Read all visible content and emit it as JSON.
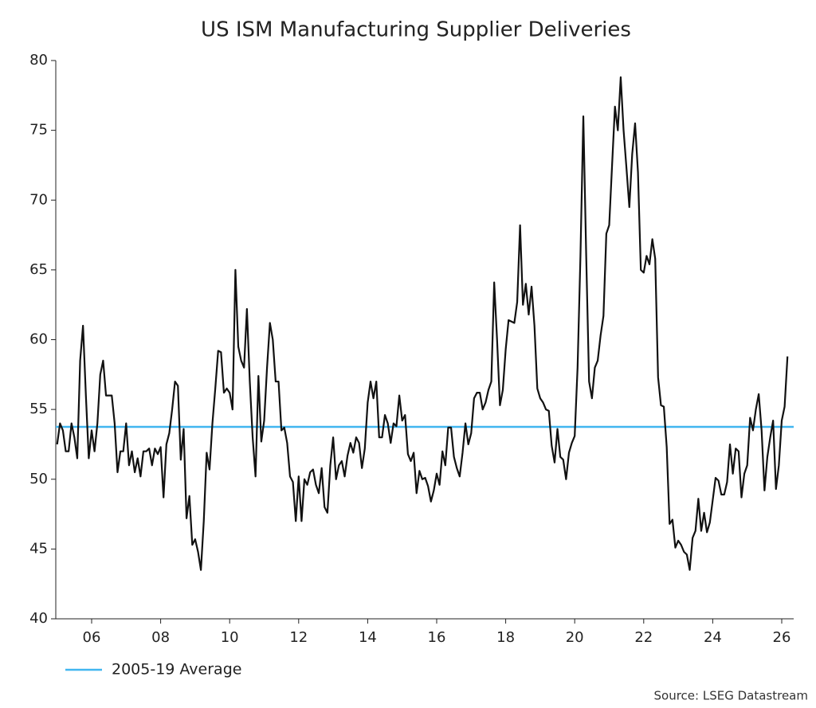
{
  "chart_data": {
    "type": "line",
    "title": "US ISM Manufacturing Supplier Deliveries",
    "source": "Source: LSEG Datastream",
    "color": "#111111",
    "categories": [
      null,
      null,
      null,
      null,
      null,
      null,
      null,
      null,
      null,
      null,
      null,
      null,
      "06",
      null,
      null,
      null,
      null,
      null,
      null,
      null,
      null,
      null,
      null,
      null,
      null,
      null,
      null,
      null,
      null,
      null,
      null,
      null,
      null,
      null,
      null,
      null,
      "08",
      null,
      null,
      null,
      null,
      null,
      null,
      null,
      null,
      null,
      null,
      null,
      null,
      null,
      null,
      null,
      null,
      null,
      null,
      null,
      null,
      null,
      null,
      null,
      "10",
      null,
      null,
      null,
      null,
      null,
      null,
      null,
      null,
      null,
      null,
      null,
      null,
      null,
      null,
      null,
      null,
      null,
      null,
      null,
      null,
      null,
      null,
      null,
      "12",
      null,
      null,
      null,
      null,
      null,
      null,
      null,
      null,
      null,
      null,
      null,
      null,
      null,
      null,
      null,
      null,
      null,
      null,
      null,
      null,
      null,
      null,
      null,
      "14",
      null,
      null,
      null,
      null,
      null,
      null,
      null,
      null,
      null,
      null,
      null,
      null,
      null,
      null,
      null,
      null,
      null,
      null,
      null,
      null,
      null,
      null,
      null,
      "16",
      null,
      null,
      null,
      null,
      null,
      null,
      null,
      null,
      null,
      null,
      null,
      null,
      null,
      null,
      null,
      null,
      null,
      null,
      null,
      null,
      null,
      null,
      null,
      "18",
      null,
      null,
      null,
      null,
      null,
      null,
      null,
      null,
      null,
      null,
      null,
      null,
      null,
      null,
      null,
      null,
      null,
      null,
      null,
      null,
      null,
      null,
      null,
      "20",
      null,
      null,
      null,
      null,
      null,
      null,
      null,
      null,
      null,
      null,
      null,
      null,
      null,
      null,
      null,
      null,
      null,
      null,
      null,
      null,
      null,
      null,
      null,
      "22",
      null,
      null,
      null,
      null,
      null,
      null,
      null,
      null,
      null,
      null,
      null,
      null,
      null,
      null,
      null,
      null,
      null,
      null,
      null,
      null,
      null,
      null,
      null,
      "24",
      null,
      null,
      null,
      null,
      null,
      null,
      null,
      null,
      null,
      null,
      null,
      null,
      null,
      null,
      null,
      null,
      null,
      null,
      null,
      null,
      null,
      null,
      null,
      "26",
      null,
      null
    ],
    "values": [
      52.5,
      54,
      53.5,
      52,
      52,
      54,
      53,
      51.5,
      58.5,
      61,
      56,
      51.5,
      53.5,
      52,
      54,
      57.5,
      58.5,
      56,
      56,
      56,
      54,
      50.5,
      52,
      52,
      54,
      51,
      52,
      50.5,
      51.5,
      50.2,
      52,
      52,
      52.2,
      51,
      52.2,
      51.8,
      52.3,
      48.7,
      52.5,
      53.3,
      55,
      57,
      56.7,
      51.4,
      53.6,
      47.2,
      48.8,
      45.3,
      45.7,
      44.8,
      43.5,
      47,
      51.9,
      50.7,
      54,
      56.5,
      59.2,
      59.1,
      56.2,
      56.5,
      56.2,
      55,
      65,
      59.5,
      58.5,
      58,
      62.2,
      57,
      53,
      50.2,
      57.4,
      52.7,
      54.2,
      58,
      61.2,
      60,
      57,
      57,
      53.5,
      53.7,
      52.6,
      50.2,
      49.8,
      47,
      50.2,
      47,
      50,
      49.6,
      50.5,
      50.7,
      49.6,
      49,
      50.8,
      48,
      47.6,
      51,
      53,
      50,
      51,
      51.3,
      50.2,
      51.7,
      52.6,
      51.9,
      53,
      52.6,
      50.8,
      52.2,
      55.5,
      57,
      55.8,
      57,
      53,
      53,
      54.6,
      54,
      52.6,
      54,
      53.8,
      56,
      54.2,
      54.6,
      51.8,
      51.3,
      51.9,
      49,
      50.6,
      50,
      50.1,
      49.5,
      48.4,
      49.2,
      50.4,
      49.6,
      52,
      51,
      53.7,
      53.7,
      51.6,
      50.8,
      50.2,
      51.9,
      54,
      52.5,
      53.3,
      55.8,
      56.2,
      56.2,
      55,
      55.5,
      56.4,
      57,
      64.1,
      60,
      55.3,
      56.4,
      59.3,
      61.4,
      61.3,
      61.2,
      62.7,
      68.2,
      62.5,
      64,
      61.8,
      63.8,
      61,
      56.5,
      55.8,
      55.5,
      55,
      54.9,
      52.4,
      51.2,
      53.6,
      51.6,
      51.4,
      50,
      51.9,
      52.6,
      53.1,
      58,
      66,
      76,
      66,
      57,
      55.8,
      58,
      58.5,
      60.3,
      61.7,
      67.6,
      68.2,
      72.5,
      76.7,
      75,
      78.8,
      75,
      72.3,
      69.5,
      73.3,
      75.5,
      72,
      65,
      64.8,
      66,
      65.4,
      67.2,
      65.8,
      57.3,
      55.3,
      55.2,
      52.3,
      46.8,
      47.1,
      45.1,
      45.6,
      45.3,
      44.8,
      44.6,
      43.5,
      45.8,
      46.3,
      48.6,
      46.3,
      47.6,
      46.2,
      46.9,
      48.5,
      50.1,
      49.9,
      48.9,
      48.9,
      49.8,
      52.5,
      50.4,
      52.2,
      52,
      48.7,
      50.4,
      51,
      54.4,
      53.5,
      55,
      56.1,
      53.5,
      49.2,
      51.6,
      53,
      54.2,
      49.3,
      51,
      54.2,
      55.2,
      58.8
    ],
    "average": {
      "name": "2005-19 Average",
      "value": 53.75,
      "color": "#41b6f0"
    },
    "ylim": [
      40,
      80
    ],
    "yticks": [
      40,
      45,
      50,
      55,
      60,
      65,
      70,
      75,
      80
    ],
    "grid": false,
    "legend": "bottom-left"
  }
}
